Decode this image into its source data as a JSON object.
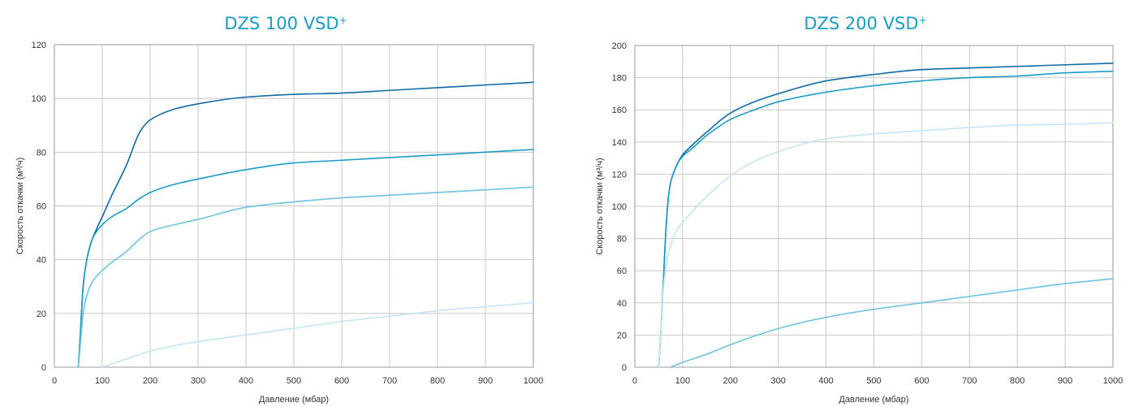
{
  "chart_data": [
    {
      "type": "line",
      "title": "DZS 100 VSD",
      "title_sup": "+",
      "xlabel": "Давление (мбар)",
      "ylabel": "Скорость откачки (м³/ч)",
      "xlim": [
        0,
        1000
      ],
      "ylim": [
        0,
        120
      ],
      "xticks": [
        "0",
        "100",
        "200",
        "300",
        "400",
        "500",
        "600",
        "700",
        "800",
        "900",
        "1000"
      ],
      "yticks": [
        "0",
        "20",
        "40",
        "60",
        "80",
        "100",
        "120"
      ],
      "grid": true,
      "series": [
        {
          "color": "#0f6aa6",
          "x": [
            50,
            55,
            60,
            70,
            80,
            100,
            120,
            150,
            180,
            200,
            250,
            300,
            400,
            500,
            600,
            700,
            800,
            900,
            1000
          ],
          "y": [
            0,
            15,
            30,
            42,
            48,
            56,
            64,
            75,
            88,
            92,
            96,
            98,
            100.5,
            101.5,
            102,
            103,
            104,
            105,
            106
          ]
        },
        {
          "color": "#1a9cc4",
          "x": [
            50,
            55,
            60,
            70,
            80,
            100,
            120,
            150,
            180,
            200,
            250,
            300,
            400,
            500,
            600,
            700,
            800,
            900,
            1000
          ],
          "y": [
            0,
            15,
            30,
            42,
            48,
            53,
            56,
            59,
            63,
            65,
            68,
            70,
            73.5,
            76,
            77,
            78,
            79,
            80,
            81
          ]
        },
        {
          "color": "#6cc4e2",
          "x": [
            50,
            55,
            60,
            70,
            80,
            100,
            120,
            150,
            180,
            200,
            250,
            300,
            400,
            500,
            600,
            700,
            800,
            900,
            1000
          ],
          "y": [
            0,
            10,
            20,
            28,
            32,
            36,
            39,
            43,
            48,
            50.5,
            53,
            55,
            59.5,
            61.5,
            63,
            64,
            65,
            66,
            67
          ]
        },
        {
          "color": "#c2e6f4",
          "x": [
            100,
            150,
            200,
            250,
            300,
            400,
            500,
            600,
            700,
            800,
            900,
            1000
          ],
          "y": [
            0,
            3,
            6,
            8,
            9.5,
            12,
            14.5,
            17,
            19,
            21,
            22.5,
            24
          ]
        }
      ]
    },
    {
      "type": "line",
      "title": "DZS 200 VSD",
      "title_sup": "+",
      "xlabel": "Давление (мбар)",
      "ylabel": "Скорость откачки (м³/ч)",
      "xlim": [
        0,
        1000
      ],
      "ylim": [
        0,
        200
      ],
      "xticks": [
        "0",
        "100",
        "200",
        "300",
        "400",
        "500",
        "600",
        "700",
        "800",
        "900",
        "1000"
      ],
      "yticks": [
        "0",
        "20",
        "40",
        "60",
        "80",
        "100",
        "120",
        "140",
        "160",
        "180",
        "200"
      ],
      "grid": true,
      "series": [
        {
          "color": "#0f6aa6",
          "x": [
            50,
            55,
            60,
            65,
            70,
            75,
            80,
            90,
            100,
            120,
            150,
            200,
            250,
            300,
            400,
            500,
            600,
            700,
            800,
            900,
            1000
          ],
          "y": [
            0,
            25,
            55,
            85,
            105,
            115,
            120,
            127,
            132,
            138,
            146,
            158,
            165,
            170,
            178,
            182,
            185,
            186,
            187,
            188,
            189
          ]
        },
        {
          "color": "#1a9cc4",
          "x": [
            50,
            55,
            60,
            65,
            70,
            75,
            80,
            90,
            100,
            120,
            150,
            200,
            250,
            300,
            400,
            500,
            600,
            700,
            800,
            900,
            1000
          ],
          "y": [
            0,
            25,
            55,
            85,
            105,
            115,
            120,
            127,
            131,
            136,
            144,
            154,
            160,
            165,
            171,
            175,
            178,
            180,
            181,
            183,
            184
          ]
        },
        {
          "color": "#c2e6f4",
          "x": [
            50,
            55,
            60,
            70,
            80,
            90,
            100,
            150,
            200,
            250,
            300,
            400,
            500,
            600,
            700,
            800,
            900,
            1000
          ],
          "y": [
            0,
            25,
            50,
            70,
            80,
            86,
            90,
            106,
            119,
            128,
            134,
            142,
            145,
            147,
            149,
            150.5,
            151,
            152
          ]
        },
        {
          "color": "#6cc4e2",
          "x": [
            75,
            100,
            150,
            200,
            300,
            400,
            500,
            600,
            700,
            800,
            900,
            1000
          ],
          "y": [
            0,
            3,
            8,
            14,
            24,
            31,
            36,
            40,
            44,
            48,
            52,
            55
          ]
        }
      ]
    }
  ]
}
